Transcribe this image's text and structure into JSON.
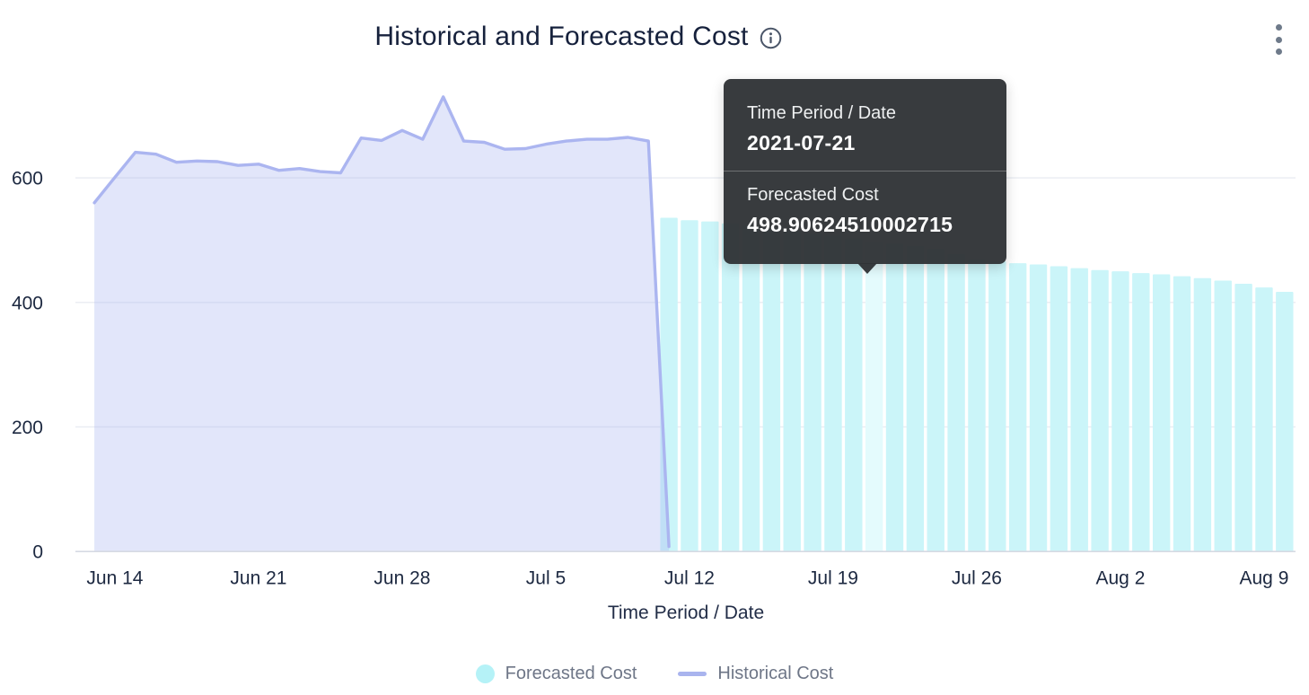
{
  "header": {
    "title": "Historical and Forecasted Cost"
  },
  "menu": {
    "kebab_icon": "kebab-menu-icon"
  },
  "tooltip": {
    "heading_label": "Time Period / Date",
    "heading_value": "2021-07-21",
    "series_label": "Forecasted Cost",
    "series_value": "498.90624510002715"
  },
  "legend": {
    "items": [
      {
        "label": "Forecasted Cost",
        "swatch": "circle",
        "color": "#b5f2f7"
      },
      {
        "label": "Historical Cost",
        "swatch": "line",
        "color": "#a9b4ee"
      }
    ]
  },
  "colors": {
    "title": "#16213c",
    "info_icon": "#4a5568",
    "menu_icon": "#6e7a8a",
    "grid": "#e9ecf2",
    "axis_line": "#d6dae3",
    "tick_label": "#1c2840",
    "axis_title": "#222d47",
    "historical_line": "#abb5f0",
    "historical_fill": "rgba(171,181,240,0.34)",
    "bar": "#cbf5f9",
    "bar_highlight": "#e4fbfd",
    "tooltip_bg": "rgba(48,51,54,0.96)",
    "legend_text": "#6e7687"
  },
  "chart_data": {
    "type": "line+bar",
    "title": "Historical and Forecasted Cost",
    "xlabel": "Time Period / Date",
    "ylabel": "",
    "ylim": [
      0,
      770
    ],
    "grid": true,
    "legend_position": "bottom",
    "y_ticks": [
      0,
      200,
      400,
      600
    ],
    "x_ticks": [
      {
        "label": "Jun 14",
        "date": "2021-06-14"
      },
      {
        "label": "Jun 21",
        "date": "2021-06-21"
      },
      {
        "label": "Jun 28",
        "date": "2021-06-28"
      },
      {
        "label": "Jul 5",
        "date": "2021-07-05"
      },
      {
        "label": "Jul 12",
        "date": "2021-07-12"
      },
      {
        "label": "Jul 19",
        "date": "2021-07-19"
      },
      {
        "label": "Jul 26",
        "date": "2021-07-26"
      },
      {
        "label": "Aug 2",
        "date": "2021-08-02"
      },
      {
        "label": "Aug 9",
        "date": "2021-08-09"
      }
    ],
    "highlight_date": "2021-07-21",
    "series": [
      {
        "name": "Historical Cost",
        "type": "area-line",
        "points": [
          [
            "2021-06-13",
            560
          ],
          [
            "2021-06-14",
            601
          ],
          [
            "2021-06-15",
            641
          ],
          [
            "2021-06-16",
            638
          ],
          [
            "2021-06-17",
            625
          ],
          [
            "2021-06-18",
            627
          ],
          [
            "2021-06-19",
            626
          ],
          [
            "2021-06-20",
            620
          ],
          [
            "2021-06-21",
            622
          ],
          [
            "2021-06-22",
            612
          ],
          [
            "2021-06-23",
            615
          ],
          [
            "2021-06-24",
            610
          ],
          [
            "2021-06-25",
            608
          ],
          [
            "2021-06-26",
            664
          ],
          [
            "2021-06-27",
            660
          ],
          [
            "2021-06-28",
            676
          ],
          [
            "2021-06-29",
            662
          ],
          [
            "2021-06-30",
            730
          ],
          [
            "2021-07-01",
            659
          ],
          [
            "2021-07-02",
            657
          ],
          [
            "2021-07-03",
            646
          ],
          [
            "2021-07-04",
            647
          ],
          [
            "2021-07-05",
            654
          ],
          [
            "2021-07-06",
            659
          ],
          [
            "2021-07-07",
            662
          ],
          [
            "2021-07-08",
            662
          ],
          [
            "2021-07-09",
            665
          ],
          [
            "2021-07-10",
            659
          ],
          [
            "2021-07-11",
            8
          ]
        ]
      },
      {
        "name": "Forecasted Cost",
        "type": "bar",
        "points": [
          [
            "2021-07-11",
            536
          ],
          [
            "2021-07-12",
            532
          ],
          [
            "2021-07-13",
            530
          ],
          [
            "2021-07-14",
            527
          ],
          [
            "2021-07-15",
            523
          ],
          [
            "2021-07-16",
            519
          ],
          [
            "2021-07-17",
            515
          ],
          [
            "2021-07-18",
            511
          ],
          [
            "2021-07-19",
            507
          ],
          [
            "2021-07-20",
            503
          ],
          [
            "2021-07-21",
            498.90624510002715
          ],
          [
            "2021-07-22",
            495
          ],
          [
            "2021-07-23",
            491
          ],
          [
            "2021-07-24",
            486
          ],
          [
            "2021-07-25",
            478
          ],
          [
            "2021-07-26",
            469
          ],
          [
            "2021-07-27",
            466
          ],
          [
            "2021-07-28",
            463
          ],
          [
            "2021-07-29",
            461
          ],
          [
            "2021-07-30",
            458
          ],
          [
            "2021-07-31",
            455
          ],
          [
            "2021-08-01",
            452
          ],
          [
            "2021-08-02",
            450
          ],
          [
            "2021-08-03",
            447
          ],
          [
            "2021-08-04",
            445
          ],
          [
            "2021-08-05",
            442
          ],
          [
            "2021-08-06",
            439
          ],
          [
            "2021-08-07",
            435
          ],
          [
            "2021-08-08",
            430
          ],
          [
            "2021-08-09",
            424
          ],
          [
            "2021-08-10",
            417
          ]
        ]
      }
    ]
  }
}
